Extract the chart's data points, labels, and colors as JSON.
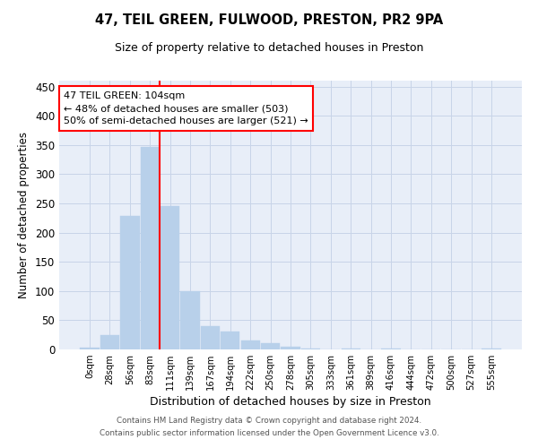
{
  "title1": "47, TEIL GREEN, FULWOOD, PRESTON, PR2 9PA",
  "title2": "Size of property relative to detached houses in Preston",
  "xlabel": "Distribution of detached houses by size in Preston",
  "ylabel": "Number of detached properties",
  "bin_labels": [
    "0sqm",
    "28sqm",
    "56sqm",
    "83sqm",
    "111sqm",
    "139sqm",
    "167sqm",
    "194sqm",
    "222sqm",
    "250sqm",
    "278sqm",
    "305sqm",
    "333sqm",
    "361sqm",
    "389sqm",
    "416sqm",
    "444sqm",
    "472sqm",
    "500sqm",
    "527sqm",
    "555sqm"
  ],
  "bar_heights": [
    3,
    25,
    228,
    347,
    246,
    100,
    40,
    30,
    15,
    10,
    4,
    2,
    0,
    1,
    0,
    2,
    0,
    0,
    0,
    0,
    2
  ],
  "bar_color": "#b8d0ea",
  "bar_edge_color": "#b8d0ea",
  "grid_color": "#c8d4e8",
  "background_color": "#e8eef8",
  "ann_line1": "47 TEIL GREEN: 104sqm",
  "ann_line2": "← 48% of detached houses are smaller (503)",
  "ann_line3": "50% of semi-detached houses are larger (521) →",
  "vline_x": 3.5,
  "ylim": [
    0,
    460
  ],
  "yticks": [
    0,
    50,
    100,
    150,
    200,
    250,
    300,
    350,
    400,
    450
  ],
  "footer1": "Contains HM Land Registry data © Crown copyright and database right 2024.",
  "footer2": "Contains public sector information licensed under the Open Government Licence v3.0."
}
